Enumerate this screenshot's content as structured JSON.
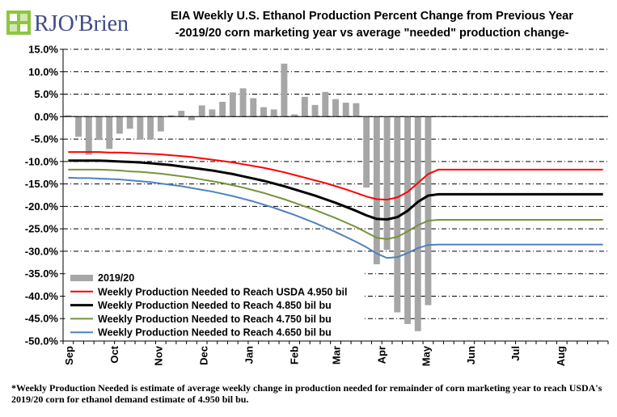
{
  "logo": {
    "text": "RJO'Brien"
  },
  "title_line1": "EIA Weekly U.S. Ethanol Production Percent Change from Previous Year",
  "title_line2": "-2019/20 corn marketing year vs average \"needed\" production change-",
  "footnote": "*Weekly Production Needed is estimate of average weekly change in production needed for remainder of corn marketing year to reach USDA's 2019/20 corn for ethanol demand estimate of 4.950 bil bu.",
  "chart_data": {
    "type": "bar+line",
    "ylim": [
      -50,
      15
    ],
    "yticks": [
      15,
      10,
      5,
      0,
      -5,
      -10,
      -15,
      -20,
      -25,
      -30,
      -35,
      -40,
      -45,
      -50
    ],
    "ytick_labels": [
      "15.0%",
      "10.0%",
      "5.0%",
      "0.0%",
      "-5.0%",
      "-10.0%",
      "-15.0%",
      "-20.0%",
      "-25.0%",
      "-30.0%",
      "-35.0%",
      "-40.0%",
      "-45.0%",
      "-50.0%"
    ],
    "n_weeks": 53,
    "months": [
      {
        "label": "Sep",
        "week": 0
      },
      {
        "label": "Oct",
        "week": 4.4
      },
      {
        "label": "Nov",
        "week": 8.7
      },
      {
        "label": "Dec",
        "week": 13.1
      },
      {
        "label": "Jan",
        "week": 17.5
      },
      {
        "label": "Feb",
        "week": 21.9
      },
      {
        "label": "Mar",
        "week": 26.0
      },
      {
        "label": "Apr",
        "week": 30.4
      },
      {
        "label": "May",
        "week": 34.7
      },
      {
        "label": "Jun",
        "week": 39.1
      },
      {
        "label": "Jul",
        "week": 43.4
      },
      {
        "label": "Aug",
        "week": 47.8
      }
    ],
    "grid": true,
    "legend_position": "bottom-left",
    "bars": {
      "name": "2019/20",
      "color": "#a6a6a6",
      "values": [
        0.3,
        -4.5,
        -8.5,
        -5.2,
        -7.2,
        -3.8,
        -2.7,
        -5.1,
        -5.1,
        -3.3,
        0.3,
        1.3,
        -0.8,
        2.5,
        1.6,
        3.3,
        5.4,
        6.3,
        4.1,
        2.1,
        1.6,
        11.8,
        0.5,
        4.4,
        2.6,
        5.5,
        3.9,
        3.1,
        3.0,
        -15.8,
        -32.9,
        -29.7,
        -43.6,
        -46.2,
        -47.8,
        -42.0
      ]
    },
    "series": [
      {
        "name": "Weekly Production Needed to Reach USDA 4.950 bil",
        "color": "#ff0000",
        "width": 2,
        "values": [
          -7.9,
          -7.9,
          -7.9,
          -7.9,
          -8.0,
          -8.0,
          -8.1,
          -8.2,
          -8.3,
          -8.4,
          -8.6,
          -8.8,
          -9.0,
          -9.3,
          -9.6,
          -9.9,
          -10.2,
          -10.6,
          -11.0,
          -11.4,
          -11.9,
          -12.4,
          -13.0,
          -13.6,
          -14.2,
          -14.8,
          -15.5,
          -16.2,
          -17.0,
          -17.8,
          -18.4,
          -18.5,
          -18.0,
          -16.8,
          -14.8,
          -12.8,
          -11.8,
          -11.8,
          -11.8,
          -11.8,
          -11.8,
          -11.8,
          -11.8,
          -11.8,
          -11.8,
          -11.8,
          -11.8,
          -11.8,
          -11.8,
          -11.8,
          -11.8,
          -11.8,
          -11.8
        ]
      },
      {
        "name": "Weekly Production Needed to Reach 4.850 bil bu",
        "color": "#000000",
        "width": 3,
        "values": [
          -9.8,
          -9.8,
          -9.8,
          -9.8,
          -9.9,
          -10.0,
          -10.1,
          -10.2,
          -10.4,
          -10.6,
          -10.8,
          -11.1,
          -11.4,
          -11.7,
          -12.0,
          -12.4,
          -12.8,
          -13.3,
          -13.8,
          -14.3,
          -14.9,
          -15.5,
          -16.2,
          -16.9,
          -17.6,
          -18.4,
          -19.2,
          -20.1,
          -21.0,
          -22.0,
          -22.8,
          -22.9,
          -22.4,
          -21.0,
          -19.0,
          -17.6,
          -17.3,
          -17.3,
          -17.3,
          -17.3,
          -17.3,
          -17.3,
          -17.3,
          -17.3,
          -17.3,
          -17.3,
          -17.3,
          -17.3,
          -17.3,
          -17.3,
          -17.3,
          -17.3,
          -17.3
        ]
      },
      {
        "name": "Weekly Production Needed to Reach 4.750 bil bu",
        "color": "#77933c",
        "width": 2,
        "values": [
          -11.8,
          -11.8,
          -11.8,
          -11.8,
          -11.9,
          -12.0,
          -12.2,
          -12.3,
          -12.5,
          -12.7,
          -13.0,
          -13.3,
          -13.6,
          -14.0,
          -14.4,
          -14.8,
          -15.3,
          -15.8,
          -16.4,
          -17.0,
          -17.7,
          -18.4,
          -19.2,
          -20.0,
          -20.8,
          -21.7,
          -22.6,
          -23.6,
          -24.6,
          -25.8,
          -27.0,
          -27.3,
          -26.8,
          -25.6,
          -24.2,
          -23.2,
          -23.0,
          -23.0,
          -23.0,
          -23.0,
          -23.0,
          -23.0,
          -23.0,
          -23.0,
          -23.0,
          -23.0,
          -23.0,
          -23.0,
          -23.0,
          -23.0,
          -23.0,
          -23.0,
          -23.0
        ]
      },
      {
        "name": "Weekly Production Needed to Reach 4.650 bil bu",
        "color": "#4f81bd",
        "width": 2,
        "values": [
          -13.6,
          -13.7,
          -13.7,
          -13.8,
          -13.9,
          -14.0,
          -14.2,
          -14.4,
          -14.6,
          -14.9,
          -15.2,
          -15.5,
          -15.9,
          -16.3,
          -16.7,
          -17.2,
          -17.7,
          -18.3,
          -18.9,
          -19.6,
          -20.3,
          -21.1,
          -21.9,
          -22.8,
          -23.7,
          -24.7,
          -25.7,
          -26.8,
          -27.9,
          -29.1,
          -30.5,
          -31.5,
          -31.3,
          -30.4,
          -29.3,
          -28.6,
          -28.5,
          -28.5,
          -28.5,
          -28.5,
          -28.5,
          -28.5,
          -28.5,
          -28.5,
          -28.5,
          -28.5,
          -28.5,
          -28.5,
          -28.5,
          -28.5,
          -28.5,
          -28.5,
          -28.5
        ]
      }
    ]
  }
}
